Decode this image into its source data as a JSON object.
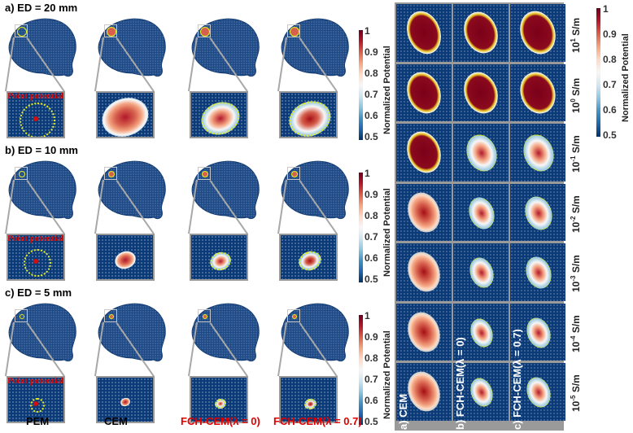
{
  "left_panel": {
    "rows": [
      {
        "title": "a) ED = 20 mm",
        "point_label": "Point potential"
      },
      {
        "title": "b) ED = 10 mm",
        "point_label": "Point potential"
      },
      {
        "title": "c) ED = 5 mm",
        "point_label": "Point potential"
      }
    ],
    "columns": [
      {
        "label": "PEM",
        "color": "#000000"
      },
      {
        "label": "CEM",
        "color": "#000000"
      },
      {
        "label": "FCH-CEM(λ = 0)",
        "color": "#e00000"
      },
      {
        "label": "FCH-CEM(λ = 0.7)",
        "color": "#e00000"
      }
    ],
    "colorbar": {
      "title": "Normalized Potential",
      "ticks": [
        "1",
        "0.9",
        "0.8",
        "0.7",
        "0.6",
        "0.5"
      ]
    }
  },
  "right_panel": {
    "columns": [
      {
        "label": "a) CEM"
      },
      {
        "label": "b) FCH-CEM(λ = 0)"
      },
      {
        "label": "c) FCH-CEM(λ = 0.7)"
      }
    ],
    "conductivities": [
      {
        "base": "10",
        "exp": "1",
        "unit": " S/m"
      },
      {
        "base": "10",
        "exp": "0",
        "unit": " S/m"
      },
      {
        "base": "10",
        "exp": "-1",
        "unit": " S/m"
      },
      {
        "base": "10",
        "exp": "-2",
        "unit": " S/m"
      },
      {
        "base": "10",
        "exp": "-3",
        "unit": " S/m"
      },
      {
        "base": "10",
        "exp": "-4",
        "unit": " S/m"
      },
      {
        "base": "10",
        "exp": "-5",
        "unit": " S/m"
      }
    ],
    "colorbar": {
      "title": "Normalized Potential",
      "ticks": [
        "1",
        "0.9",
        "0.8",
        "0.7",
        "0.6",
        "0.5"
      ]
    }
  },
  "colors": {
    "background_blue": "#0b3a78",
    "highlight_red": "#e00000",
    "contour_yellow": "#e6ee20"
  }
}
